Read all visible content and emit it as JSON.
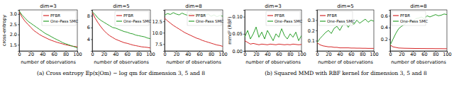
{
  "chart_data": [
    {
      "type": "line",
      "title": "dim=3",
      "x_label": "number of observations",
      "y_label": "cross-entropy",
      "x": [
        0,
        5,
        10,
        15,
        20,
        25,
        30,
        35,
        40,
        45,
        50,
        55,
        60,
        65,
        70,
        75,
        80,
        85,
        90,
        95,
        100
      ],
      "xlim": [
        0,
        100
      ],
      "xticks": [
        0,
        20,
        40,
        60,
        80,
        100
      ],
      "ylim": [
        1.2,
        3.2
      ],
      "yticks": [
        1.5,
        {
          "value": 2,
          "label": "2.0"
        },
        2.5,
        {
          "value": 3,
          "label": "3.0"
        }
      ],
      "legend": "upper right",
      "series": [
        {
          "name": "PFBR",
          "color": "#d62728",
          "values": [
            3.1,
            2.85,
            2.65,
            2.5,
            2.35,
            2.2,
            2.1,
            2.0,
            1.92,
            1.85,
            1.78,
            1.72,
            1.67,
            1.62,
            1.58,
            1.54,
            1.5,
            1.47,
            1.44,
            1.42,
            1.4
          ]
        },
        {
          "name": "One-Pass SMC",
          "color": "#2ca02c",
          "values": [
            3.15,
            2.95,
            2.8,
            2.65,
            2.55,
            2.45,
            2.35,
            2.25,
            2.15,
            2.05,
            1.98,
            1.9,
            1.82,
            1.75,
            1.68,
            1.6,
            1.55,
            1.5,
            1.45,
            1.4,
            1.35
          ]
        }
      ]
    },
    {
      "type": "line",
      "title": "dim=5",
      "x_label": "number of observations",
      "x": [
        0,
        5,
        10,
        15,
        20,
        25,
        30,
        35,
        40,
        45,
        50,
        55,
        60,
        65,
        70,
        75,
        80,
        85,
        90,
        95,
        100
      ],
      "xlim": [
        0,
        100
      ],
      "xticks": [
        0,
        20,
        40,
        60,
        80,
        100
      ],
      "ylim": [
        2,
        9
      ],
      "yticks": [
        4,
        6,
        8
      ],
      "legend": "upper right",
      "series": [
        {
          "name": "PFBR",
          "color": "#d62728",
          "values": [
            8.6,
            7.6,
            6.8,
            6.1,
            5.5,
            5.0,
            4.6,
            4.3,
            4.0,
            3.8,
            3.6,
            3.4,
            3.3,
            3.15,
            3.0,
            2.9,
            2.8,
            2.7,
            2.65,
            2.6,
            2.5
          ]
        },
        {
          "name": "One-Pass SMC",
          "color": "#2ca02c",
          "values": [
            8.7,
            8.2,
            7.6,
            7.2,
            6.9,
            6.6,
            6.3,
            6.0,
            5.9,
            5.7,
            5.5,
            5.3,
            5.2,
            5.0,
            4.9,
            4.7,
            4.6,
            4.5,
            4.4,
            4.2,
            4.1
          ]
        }
      ]
    },
    {
      "type": "line",
      "title": "dim=8",
      "x_label": "number of observations",
      "x": [
        0,
        5,
        10,
        15,
        20,
        25,
        30,
        35,
        40,
        45,
        50,
        55,
        60,
        65,
        70,
        75,
        80,
        85,
        90,
        95,
        100
      ],
      "xlim": [
        0,
        100
      ],
      "xticks": [
        0,
        20,
        40,
        60,
        80,
        100
      ],
      "ylim": [
        6,
        15
      ],
      "yticks": [
        7.5,
        {
          "value": 10,
          "label": "10.0"
        },
        12.5
      ],
      "legend": "upper right",
      "series": [
        {
          "name": "PFBR",
          "color": "#d62728",
          "values": [
            13.2,
            12.6,
            12.1,
            11.6,
            11.2,
            10.8,
            10.4,
            10.0,
            9.7,
            9.4,
            9.1,
            8.8,
            8.6,
            8.3,
            8.1,
            7.9,
            7.7,
            7.5,
            7.3,
            7.2,
            7.0
          ]
        },
        {
          "name": "One-Pass SMC",
          "color": "#2ca02c",
          "values": [
            13.8,
            14.2,
            14.0,
            14.4,
            14.1,
            13.9,
            14.3,
            14.0,
            13.8,
            14.2,
            13.9,
            14.1,
            13.7,
            14.0,
            13.8,
            14.1,
            13.6,
            13.9,
            13.5,
            13.8,
            13.6
          ]
        }
      ]
    },
    {
      "type": "line",
      "title": "dim=3",
      "x_label": "number of observations",
      "y_label": "mmd² (RBF)",
      "x": [
        0,
        5,
        10,
        15,
        20,
        25,
        30,
        35,
        40,
        45,
        50,
        55,
        60,
        65,
        70,
        75,
        80,
        85,
        90,
        95,
        100
      ],
      "xlim": [
        0,
        100
      ],
      "xticks": [
        0,
        20,
        40,
        60,
        80,
        100
      ],
      "ylim": [
        0,
        0.12
      ],
      "yticks": [
        {
          "value": 0,
          "label": "0.00"
        },
        0.05,
        {
          "value": 0.1,
          "label": "0.10"
        }
      ],
      "legend": "upper right",
      "series": [
        {
          "name": "PFBR",
          "color": "#d62728",
          "values": [
            0.03,
            0.025,
            0.02,
            0.022,
            0.02,
            0.018,
            0.02,
            0.019,
            0.018,
            0.02,
            0.019,
            0.018,
            0.02,
            0.019,
            0.018,
            0.019,
            0.018,
            0.02,
            0.019,
            0.018,
            0.019
          ]
        },
        {
          "name": "One-Pass SMC",
          "color": "#2ca02c",
          "values": [
            0.04,
            0.06,
            0.035,
            0.05,
            0.07,
            0.04,
            0.055,
            0.035,
            0.06,
            0.045,
            0.03,
            0.05,
            0.04,
            0.065,
            0.045,
            0.035,
            0.05,
            0.04,
            0.055,
            0.03,
            0.045
          ]
        }
      ]
    },
    {
      "type": "line",
      "title": "dim=5",
      "x_label": "number of observations",
      "x": [
        0,
        5,
        10,
        15,
        20,
        25,
        30,
        35,
        40,
        45,
        50,
        55,
        60,
        65,
        70,
        75,
        80,
        85,
        90,
        95,
        100
      ],
      "xlim": [
        0,
        100
      ],
      "xticks": [
        0,
        20,
        40,
        60,
        80,
        100
      ],
      "ylim": [
        0,
        0.4
      ],
      "yticks": [
        0.1,
        0.2,
        0.3
      ],
      "legend": "upper left",
      "series": [
        {
          "name": "PFBR",
          "color": "#d62728",
          "values": [
            0.08,
            0.06,
            0.05,
            0.045,
            0.04,
            0.04,
            0.035,
            0.035,
            0.03,
            0.03,
            0.03,
            0.03,
            0.028,
            0.028,
            0.027,
            0.027,
            0.026,
            0.026,
            0.025,
            0.025,
            0.025
          ]
        },
        {
          "name": "One-Pass SMC",
          "color": "#2ca02c",
          "values": [
            0.08,
            0.12,
            0.15,
            0.18,
            0.2,
            0.17,
            0.22,
            0.24,
            0.2,
            0.25,
            0.27,
            0.23,
            0.28,
            0.26,
            0.3,
            0.27,
            0.29,
            0.31,
            0.28,
            0.3,
            0.29
          ]
        }
      ]
    },
    {
      "type": "line",
      "title": "dim=8",
      "x_label": "number of observations",
      "x": [
        0,
        5,
        10,
        15,
        20,
        25,
        30,
        35,
        40,
        45,
        50,
        55,
        60,
        65,
        70,
        75,
        80,
        85,
        90,
        95,
        100
      ],
      "xlim": [
        0,
        100
      ],
      "xticks": [
        0,
        20,
        40,
        60,
        80,
        100
      ],
      "ylim": [
        0,
        0.7
      ],
      "yticks": [
        0.2,
        0.4,
        0.6
      ],
      "legend": "upper left",
      "series": [
        {
          "name": "PFBR",
          "color": "#d62728",
          "values": [
            0.1,
            0.07,
            0.06,
            0.05,
            0.048,
            0.046,
            0.045,
            0.044,
            0.043,
            0.042,
            0.042,
            0.041,
            0.041,
            0.04,
            0.04,
            0.04,
            0.039,
            0.039,
            0.039,
            0.038,
            0.038
          ]
        },
        {
          "name": "One-Pass SMC",
          "color": "#2ca02c",
          "values": [
            0.1,
            0.2,
            0.3,
            0.38,
            0.42,
            0.45,
            0.5,
            0.52,
            0.5,
            0.55,
            0.56,
            0.58,
            0.55,
            0.6,
            0.58,
            0.6,
            0.62,
            0.6,
            0.61,
            0.63,
            0.62
          ]
        }
      ]
    }
  ],
  "captions": [
    "(a) Cross entropy 𝔼p(x|Om) − log qm for dimension 3, 5 and 8",
    "(b) Squared MMD with RBF kernel for dimension 3, 5 and 8"
  ]
}
